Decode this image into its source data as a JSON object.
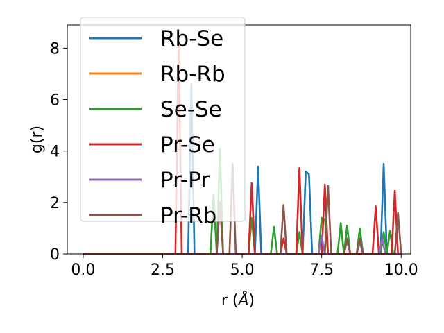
{
  "chart_data": {
    "type": "line",
    "xlabel": "r (",
    "xlabel_unit": "Å",
    "xlabel_close": ")",
    "ylabel": "g(r)",
    "xlim": [
      -0.5,
      10.3
    ],
    "ylim": [
      0,
      8.9
    ],
    "xticks": [
      0.0,
      2.5,
      5.0,
      7.5,
      10.0
    ],
    "xtick_labels": [
      "0.0",
      "2.5",
      "5.0",
      "7.5",
      "10.0"
    ],
    "yticks": [
      0,
      2,
      4,
      6,
      8
    ],
    "ytick_labels": [
      "0",
      "2",
      "4",
      "6",
      "8"
    ],
    "grid": false,
    "legend_placement": "top-left",
    "series": [
      {
        "name": "Rb-Se",
        "color": "#1f77b4",
        "x": [
          0,
          3.3,
          3.4,
          3.5,
          5.4,
          5.5,
          5.6,
          6.9,
          7.0,
          7.1,
          7.2,
          9.35,
          9.45,
          9.55,
          10.0
        ],
        "y": [
          0,
          0,
          6.6,
          0,
          0,
          3.4,
          0,
          0,
          3.2,
          3.1,
          0,
          0,
          3.5,
          0,
          0
        ]
      },
      {
        "name": "Rb-Rb",
        "color": "#ff7f0e",
        "x": [
          0,
          10.0
        ],
        "y": [
          0,
          0
        ]
      },
      {
        "name": "Se-Se",
        "color": "#2ca02c",
        "x": [
          0,
          4.0,
          4.1,
          4.2,
          4.3,
          4.4,
          4.5,
          5.2,
          5.3,
          5.4,
          5.9,
          6.0,
          6.1,
          6.7,
          6.8,
          6.9,
          7.4,
          7.5,
          7.6,
          7.7,
          8.0,
          8.1,
          8.2,
          8.3,
          8.4,
          8.6,
          8.7,
          8.8,
          9.35,
          9.45,
          9.55,
          9.65,
          9.75,
          10.0
        ],
        "y": [
          0,
          0,
          2.3,
          0,
          4.1,
          0,
          0,
          0,
          1.4,
          0,
          0,
          1.05,
          0,
          0,
          0.85,
          0,
          0,
          1.4,
          1.35,
          0,
          0,
          1.2,
          0,
          1.1,
          0,
          0,
          1.0,
          0,
          0,
          0.85,
          0,
          0.9,
          0,
          0
        ]
      },
      {
        "name": "Pr-Se",
        "color": "#d62728",
        "x": [
          0,
          2.9,
          3.0,
          3.1,
          5.2,
          5.3,
          5.4,
          6.2,
          6.3,
          6.4,
          6.7,
          6.8,
          6.9,
          7.5,
          7.6,
          7.7,
          9.1,
          9.2,
          9.3,
          9.7,
          9.8,
          9.9,
          10.0
        ],
        "y": [
          0,
          0,
          8.3,
          0,
          0,
          2.75,
          0,
          0,
          0.6,
          0,
          0,
          3.35,
          0,
          0,
          2.7,
          0,
          0,
          1.85,
          0,
          0,
          2.45,
          0,
          0
        ]
      },
      {
        "name": "Pr-Pr",
        "color": "#9467bd",
        "x": [
          0,
          7.4,
          7.5,
          7.6,
          8.2,
          8.3,
          8.4,
          8.6,
          8.7,
          8.8,
          9.3,
          9.4,
          9.5,
          10.0
        ],
        "y": [
          0,
          0,
          0.7,
          0,
          0,
          0.5,
          0,
          0,
          0.45,
          0,
          0,
          0.6,
          0,
          0
        ]
      },
      {
        "name": "Pr-Rb",
        "color": "#8c564b",
        "x": [
          0,
          4.2,
          4.3,
          4.4,
          4.6,
          4.7,
          4.8,
          6.2,
          6.3,
          6.4,
          7.6,
          7.7,
          7.8,
          8.2,
          8.3,
          8.4,
          8.6,
          8.7,
          8.8,
          9.8,
          9.9,
          10.0
        ],
        "y": [
          0,
          0,
          2.0,
          0,
          0,
          3.5,
          0,
          0,
          1.9,
          0,
          0,
          2.65,
          0,
          0,
          0.6,
          0,
          0,
          0.6,
          0,
          0,
          1.6,
          0
        ]
      }
    ]
  }
}
